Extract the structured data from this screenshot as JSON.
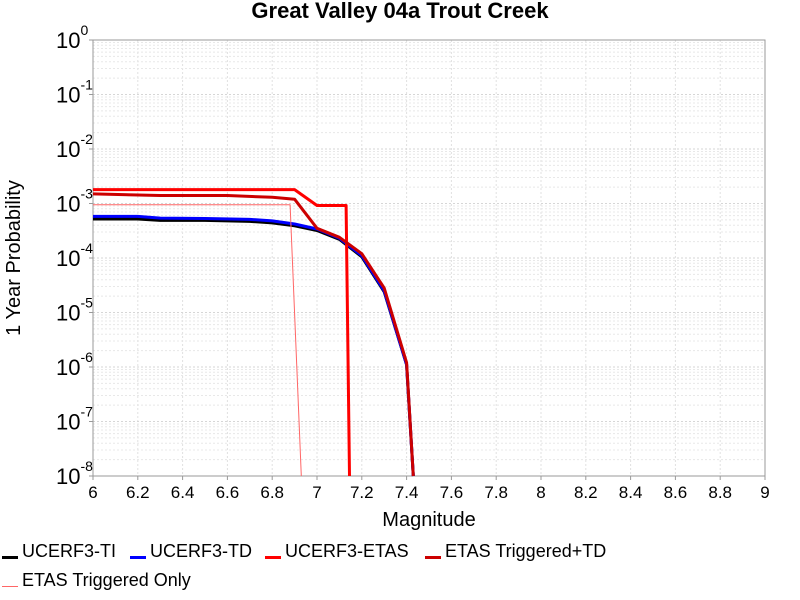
{
  "chart_data": {
    "type": "line",
    "title": "Great Valley 04a Trout Creek",
    "xlabel": "Magnitude",
    "ylabel": "1 Year Probability",
    "xlim": [
      6,
      9
    ],
    "ylim": [
      1e-08,
      1
    ],
    "yscale": "log",
    "grid": true,
    "xticks": [
      "6",
      "6.2",
      "6.4",
      "6.6",
      "6.8",
      "7",
      "7.2",
      "7.4",
      "7.6",
      "7.8",
      "8",
      "8.2",
      "8.4",
      "8.6",
      "8.8",
      "9"
    ],
    "yticks": [
      {
        "base": "10",
        "exp": "-8"
      },
      {
        "base": "10",
        "exp": "-7"
      },
      {
        "base": "10",
        "exp": "-6"
      },
      {
        "base": "10",
        "exp": "-5"
      },
      {
        "base": "10",
        "exp": "-4"
      },
      {
        "base": "10",
        "exp": "-3"
      },
      {
        "base": "10",
        "exp": "-2"
      },
      {
        "base": "10",
        "exp": "-1"
      },
      {
        "base": "10",
        "exp": "0"
      }
    ],
    "series": [
      {
        "name": "UCERF3-TI",
        "color": "#000000",
        "width": "thick",
        "points": [
          [
            6.0,
            0.00052
          ],
          [
            6.2,
            0.00052
          ],
          [
            6.3,
            0.00049
          ],
          [
            6.5,
            0.00049
          ],
          [
            6.7,
            0.00047
          ],
          [
            6.8,
            0.00044
          ],
          [
            6.9,
            0.00039
          ],
          [
            7.0,
            0.00032
          ],
          [
            7.1,
            0.00022
          ],
          [
            7.2,
            0.000105
          ],
          [
            7.3,
            2.4e-05
          ],
          [
            7.4,
            1.1e-06
          ],
          [
            7.43,
            1e-09
          ]
        ]
      },
      {
        "name": "UCERF3-TD",
        "color": "#0000ff",
        "width": "thick",
        "points": [
          [
            6.0,
            0.00058
          ],
          [
            6.2,
            0.00058
          ],
          [
            6.3,
            0.00054
          ],
          [
            6.5,
            0.00053
          ],
          [
            6.7,
            0.00051
          ],
          [
            6.8,
            0.00048
          ],
          [
            6.9,
            0.00042
          ],
          [
            7.0,
            0.00034
          ],
          [
            7.1,
            0.00023
          ],
          [
            7.2,
            0.00011
          ],
          [
            7.3,
            2.5e-05
          ],
          [
            7.4,
            1.1e-06
          ],
          [
            7.43,
            1e-09
          ]
        ]
      },
      {
        "name": "UCERF3-ETAS",
        "color": "#ff0000",
        "width": "thick",
        "points": [
          [
            6.0,
            0.0018
          ],
          [
            6.9,
            0.0018
          ],
          [
            7.0,
            0.00092
          ],
          [
            7.13,
            0.00092
          ],
          [
            7.145,
            1e-09
          ]
        ]
      },
      {
        "name": "ETAS Triggered+TD",
        "color": "#cc0000",
        "width": "thick",
        "points": [
          [
            6.0,
            0.0015
          ],
          [
            6.3,
            0.0014
          ],
          [
            6.6,
            0.0014
          ],
          [
            6.8,
            0.0013
          ],
          [
            6.9,
            0.0012
          ],
          [
            7.0,
            0.00035
          ],
          [
            7.1,
            0.00024
          ],
          [
            7.2,
            0.00012
          ],
          [
            7.3,
            2.8e-05
          ],
          [
            7.4,
            1.2e-06
          ],
          [
            7.43,
            1e-09
          ]
        ]
      },
      {
        "name": "ETAS Triggered Only",
        "color": "#ff6666",
        "width": "thin",
        "points": [
          [
            6.0,
            0.00095
          ],
          [
            6.88,
            0.00095
          ],
          [
            6.93,
            1e-09
          ]
        ]
      }
    ]
  }
}
